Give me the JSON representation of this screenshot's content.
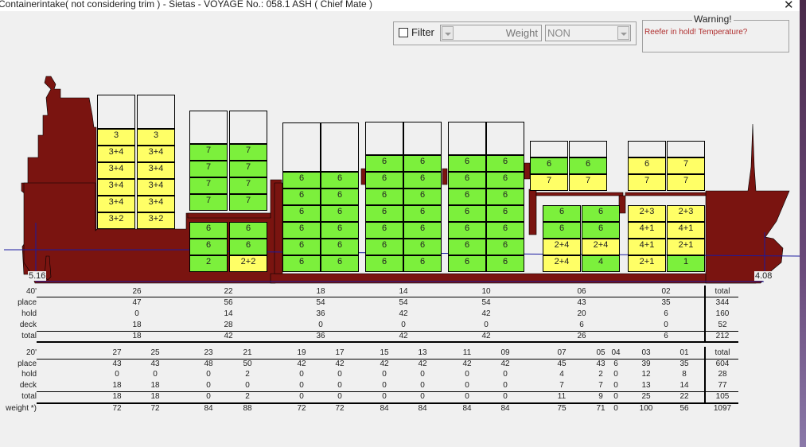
{
  "window": {
    "title": "Containerintake( not considering trim ) - Sietas - VOYAGE No.: 058.1 ASH (  Chief Mate )",
    "close_icon": "close-icon"
  },
  "filter": {
    "checkbox_label": "Filter",
    "checked": false,
    "weight_label": "Weight",
    "weight_select_value": "NON"
  },
  "warning": {
    "legend": "Warning!",
    "message": "Reefer in hold! Temperature?",
    "color": "#b03030"
  },
  "colors": {
    "hull": "#7a1410",
    "green_slot": "#7cf03c",
    "yellow_slot": "#ffff66",
    "waterline": "#1a1aa0"
  },
  "drafts": {
    "aft": "5.16",
    "fwd": "4.08"
  },
  "bays": [
    {
      "id": "26",
      "stacks": [
        [
          "",
          "3",
          "3+4",
          "3+4",
          "3+4",
          "3+4",
          "3+2"
        ],
        [
          "",
          "3",
          "3+4",
          "3+4",
          "3+4",
          "3+4",
          "3+2"
        ]
      ]
    },
    {
      "id": "22-deck",
      "stacks": [
        [
          "",
          "7",
          "7",
          "7",
          "7"
        ],
        [
          "",
          "7",
          "7",
          "7",
          "7"
        ]
      ]
    },
    {
      "id": "22-hold",
      "stacks": [
        [
          "6",
          "6",
          "2"
        ],
        [
          "6",
          "6",
          "2+2"
        ]
      ]
    },
    {
      "id": "18",
      "stacks": [
        [
          "",
          "6",
          "6",
          "6",
          "6",
          "6",
          "6"
        ],
        [
          "",
          "6",
          "6",
          "6",
          "6",
          "6",
          "6"
        ]
      ]
    },
    {
      "id": "14",
      "stacks": [
        [
          "",
          "6",
          "6",
          "6",
          "6",
          "6",
          "6",
          "6"
        ],
        [
          "",
          "6",
          "6",
          "6",
          "6",
          "6",
          "6",
          "6"
        ]
      ]
    },
    {
      "id": "10",
      "stacks": [
        [
          "",
          "6",
          "6",
          "6",
          "6",
          "6",
          "6",
          "6"
        ],
        [
          "",
          "6",
          "6",
          "6",
          "6",
          "6",
          "6",
          "6"
        ]
      ]
    },
    {
      "id": "06-deck",
      "stacks": [
        [
          "",
          "6",
          "7"
        ],
        [
          "",
          "6",
          "7"
        ]
      ]
    },
    {
      "id": "06-hold",
      "stacks": [
        [
          "6",
          "6",
          "2+4",
          "2+4"
        ],
        [
          "6",
          "6",
          "2+4",
          "4"
        ]
      ]
    },
    {
      "id": "02-deck",
      "stacks": [
        [
          "",
          "6",
          "7"
        ],
        [
          "",
          "7",
          "7"
        ]
      ]
    },
    {
      "id": "02-hold",
      "stacks": [
        [
          "2+3",
          "4+1",
          "4+1",
          "2+1"
        ],
        [
          "2+3",
          "4+1",
          "2+1",
          "1"
        ]
      ]
    }
  ],
  "table40": {
    "header_label": "40'",
    "row_labels": [
      "place",
      "hold",
      "deck",
      "total"
    ],
    "columns": [
      {
        "bay": "26",
        "place": "47",
        "hold": "0",
        "deck": "18",
        "total": "18"
      },
      {
        "bay": "22",
        "place": "56",
        "hold": "14",
        "deck": "28",
        "total": "42"
      },
      {
        "bay": "18",
        "place": "54",
        "hold": "36",
        "deck": "0",
        "total": "36"
      },
      {
        "bay": "14",
        "place": "54",
        "hold": "42",
        "deck": "0",
        "total": "42"
      },
      {
        "bay": "10",
        "place": "54",
        "hold": "42",
        "deck": "0",
        "total": "42"
      },
      {
        "bay": "06",
        "place": "43",
        "hold": "20",
        "deck": "6",
        "total": "26"
      },
      {
        "bay": "02",
        "place": "35",
        "hold": "6",
        "deck": "0",
        "total": "6"
      }
    ],
    "total": {
      "bay": "total",
      "place": "344",
      "hold": "160",
      "deck": "52",
      "total": "212"
    }
  },
  "table20": {
    "header_label": "20'",
    "row_labels": [
      "place",
      "hold",
      "deck",
      "total",
      "weight *)"
    ],
    "columns": [
      {
        "bay": "27",
        "place": "43",
        "hold": "0",
        "deck": "18",
        "total": "18",
        "weight": "72"
      },
      {
        "bay": "25",
        "place": "43",
        "hold": "0",
        "deck": "18",
        "total": "18",
        "weight": "72"
      },
      {
        "bay": "23",
        "place": "48",
        "hold": "0",
        "deck": "0",
        "total": "0",
        "weight": "84"
      },
      {
        "bay": "21",
        "place": "50",
        "hold": "2",
        "deck": "0",
        "total": "2",
        "weight": "88"
      },
      {
        "bay": "19",
        "place": "42",
        "hold": "0",
        "deck": "0",
        "total": "0",
        "weight": "72"
      },
      {
        "bay": "17",
        "place": "42",
        "hold": "0",
        "deck": "0",
        "total": "0",
        "weight": "72"
      },
      {
        "bay": "15",
        "place": "42",
        "hold": "0",
        "deck": "0",
        "total": "0",
        "weight": "84"
      },
      {
        "bay": "13",
        "place": "42",
        "hold": "0",
        "deck": "0",
        "total": "0",
        "weight": "84"
      },
      {
        "bay": "11",
        "place": "42",
        "hold": "0",
        "deck": "0",
        "total": "0",
        "weight": "84"
      },
      {
        "bay": "09",
        "place": "42",
        "hold": "0",
        "deck": "0",
        "total": "0",
        "weight": "84"
      },
      {
        "bay": "07",
        "place": "45",
        "hold": "4",
        "deck": "7",
        "total": "11",
        "weight": "75"
      },
      {
        "bay": "05",
        "place": "43",
        "hold": "2",
        "deck": "7",
        "total": "9",
        "weight": "71"
      },
      {
        "bay": "04",
        "place": "6",
        "hold": "0",
        "deck": "0",
        "total": "0",
        "weight": "0"
      },
      {
        "bay": "03",
        "place": "39",
        "hold": "12",
        "deck": "13",
        "total": "25",
        "weight": "100"
      },
      {
        "bay": "01",
        "place": "35",
        "hold": "8",
        "deck": "14",
        "total": "22",
        "weight": "56"
      }
    ],
    "total": {
      "bay": "total",
      "place": "604",
      "hold": "28",
      "deck": "77",
      "total": "105",
      "weight": "1097"
    }
  }
}
